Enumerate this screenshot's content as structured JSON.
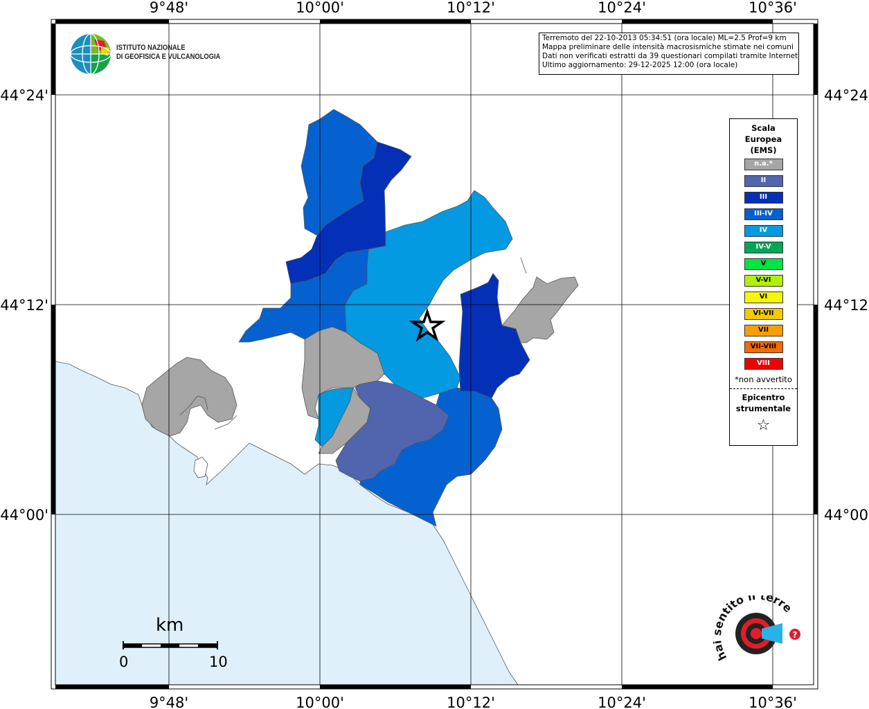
{
  "map": {
    "top_ticks": [
      "9°48'",
      "10°00'",
      "10°12'",
      "10°24'",
      "10°36'"
    ],
    "bottom_ticks": [
      "9°48'",
      "10°00'",
      "10°12'",
      "10°24'",
      "10°36'"
    ],
    "left_ticks": [
      "44°24'",
      "44°12'",
      "44°00'"
    ],
    "right_ticks": [
      "44°24'",
      "44°12'",
      "44°00'"
    ],
    "colors": {
      "sea": "#dff0fb",
      "na": "#a6a6a6",
      "II": "#5165ae",
      "III": "#0430b8",
      "III-IV": "#0561cf",
      "IV": "#049ae2"
    }
  },
  "logo": {
    "line1": "ISTITUTO NAZIONALE",
    "line2": "DI GEOFISICA E VULCANOLOGIA"
  },
  "info": {
    "line1": "Terremoto del 22-10-2013 05:34:51 (ora locale) ML=2.5 Prof=9 km",
    "line2": "Mappa preliminare delle intensità macrosismiche stimate nei comuni",
    "line3": "Dati non verificati estratti da 39 questionari compilati tramite Internet.",
    "line4": "Ultimo aggiornamento: 29-12-2025 12:00 (ora locale)"
  },
  "legend": {
    "title1": "Scala",
    "title2": "Europea",
    "title3": "(EMS)",
    "items": [
      {
        "label": "n.a.*",
        "color": "#a6a6a6"
      },
      {
        "label": "II",
        "color": "#5165ae"
      },
      {
        "label": "III",
        "color": "#0430b8"
      },
      {
        "label": "III-IV",
        "color": "#0561cf"
      },
      {
        "label": "IV",
        "color": "#049ae2"
      },
      {
        "label": "IV-V",
        "color": "#00a855"
      },
      {
        "label": "V",
        "color": "#00e640"
      },
      {
        "label": "V-VI",
        "color": "#b0f000"
      },
      {
        "label": "VI",
        "color": "#f7f500"
      },
      {
        "label": "VI-VII",
        "color": "#f7c800"
      },
      {
        "label": "VII",
        "color": "#f7a000"
      },
      {
        "label": "VII-VIII",
        "color": "#f76a00"
      },
      {
        "label": "VIII",
        "color": "#f00000"
      }
    ],
    "na_note": "*non avvertito",
    "epicenter1": "Epicentro",
    "epicenter2": "strumentale",
    "star_icon": "☆"
  },
  "scale": {
    "unit": "km",
    "min": "0",
    "max": "10"
  },
  "badge": {
    "text": "hai sentito il terremoto.it  www."
  }
}
